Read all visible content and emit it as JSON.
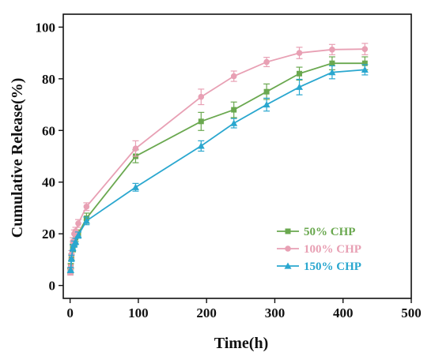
{
  "chart_data": {
    "type": "line",
    "xlabel": "Time(h)",
    "ylabel": "Cumulative Release(%)",
    "xlim": [
      -10,
      500
    ],
    "ylim": [
      -5,
      105
    ],
    "x_ticks": [
      0,
      100,
      200,
      300,
      400,
      500
    ],
    "y_ticks": [
      0,
      20,
      40,
      60,
      80,
      100
    ],
    "grid": false,
    "legend_position": "bottom-right",
    "series": [
      {
        "name": "50% CHP",
        "color": "#6aa84f",
        "marker": "square",
        "x": [
          0.5,
          1,
          2,
          4,
          6,
          8,
          12,
          24,
          96,
          192,
          240,
          288,
          336,
          384,
          432
        ],
        "y": [
          5.5,
          7.5,
          11,
          14.5,
          17,
          18.5,
          20,
          26,
          50,
          63.5,
          68,
          75,
          82,
          86,
          86
        ],
        "err": [
          1,
          1,
          1.2,
          1.5,
          1.5,
          1.5,
          1.5,
          2,
          2.5,
          3.5,
          3,
          3,
          2.5,
          2.5,
          2.5
        ]
      },
      {
        "name": "100% CHP",
        "color": "#e8a0b4",
        "marker": "circle",
        "x": [
          0.5,
          1,
          2,
          4,
          6,
          8,
          12,
          24,
          96,
          192,
          240,
          288,
          336,
          384,
          432
        ],
        "y": [
          5,
          7,
          12,
          17,
          20,
          21,
          24,
          30.5,
          53,
          73,
          81,
          86.5,
          90,
          91.3,
          91.5
        ],
        "err": [
          1,
          1,
          1.5,
          1.5,
          1.5,
          1.5,
          1.5,
          1.5,
          3,
          3,
          2,
          1.8,
          2.2,
          2,
          2.2
        ]
      },
      {
        "name": "150% CHP",
        "color": "#2aa7cf",
        "marker": "triangle",
        "x": [
          0.5,
          1,
          2,
          4,
          6,
          8,
          12,
          24,
          96,
          192,
          240,
          288,
          336,
          384,
          432
        ],
        "y": [
          6,
          6,
          10.5,
          14.5,
          16,
          17,
          19.5,
          25,
          38,
          54,
          62.8,
          70,
          76.8,
          82.5,
          83.5
        ],
        "err": [
          1,
          1,
          1.2,
          1.2,
          1.2,
          1.2,
          1.2,
          1.5,
          1.5,
          2,
          1.8,
          2.5,
          3,
          2.5,
          2
        ]
      }
    ]
  }
}
